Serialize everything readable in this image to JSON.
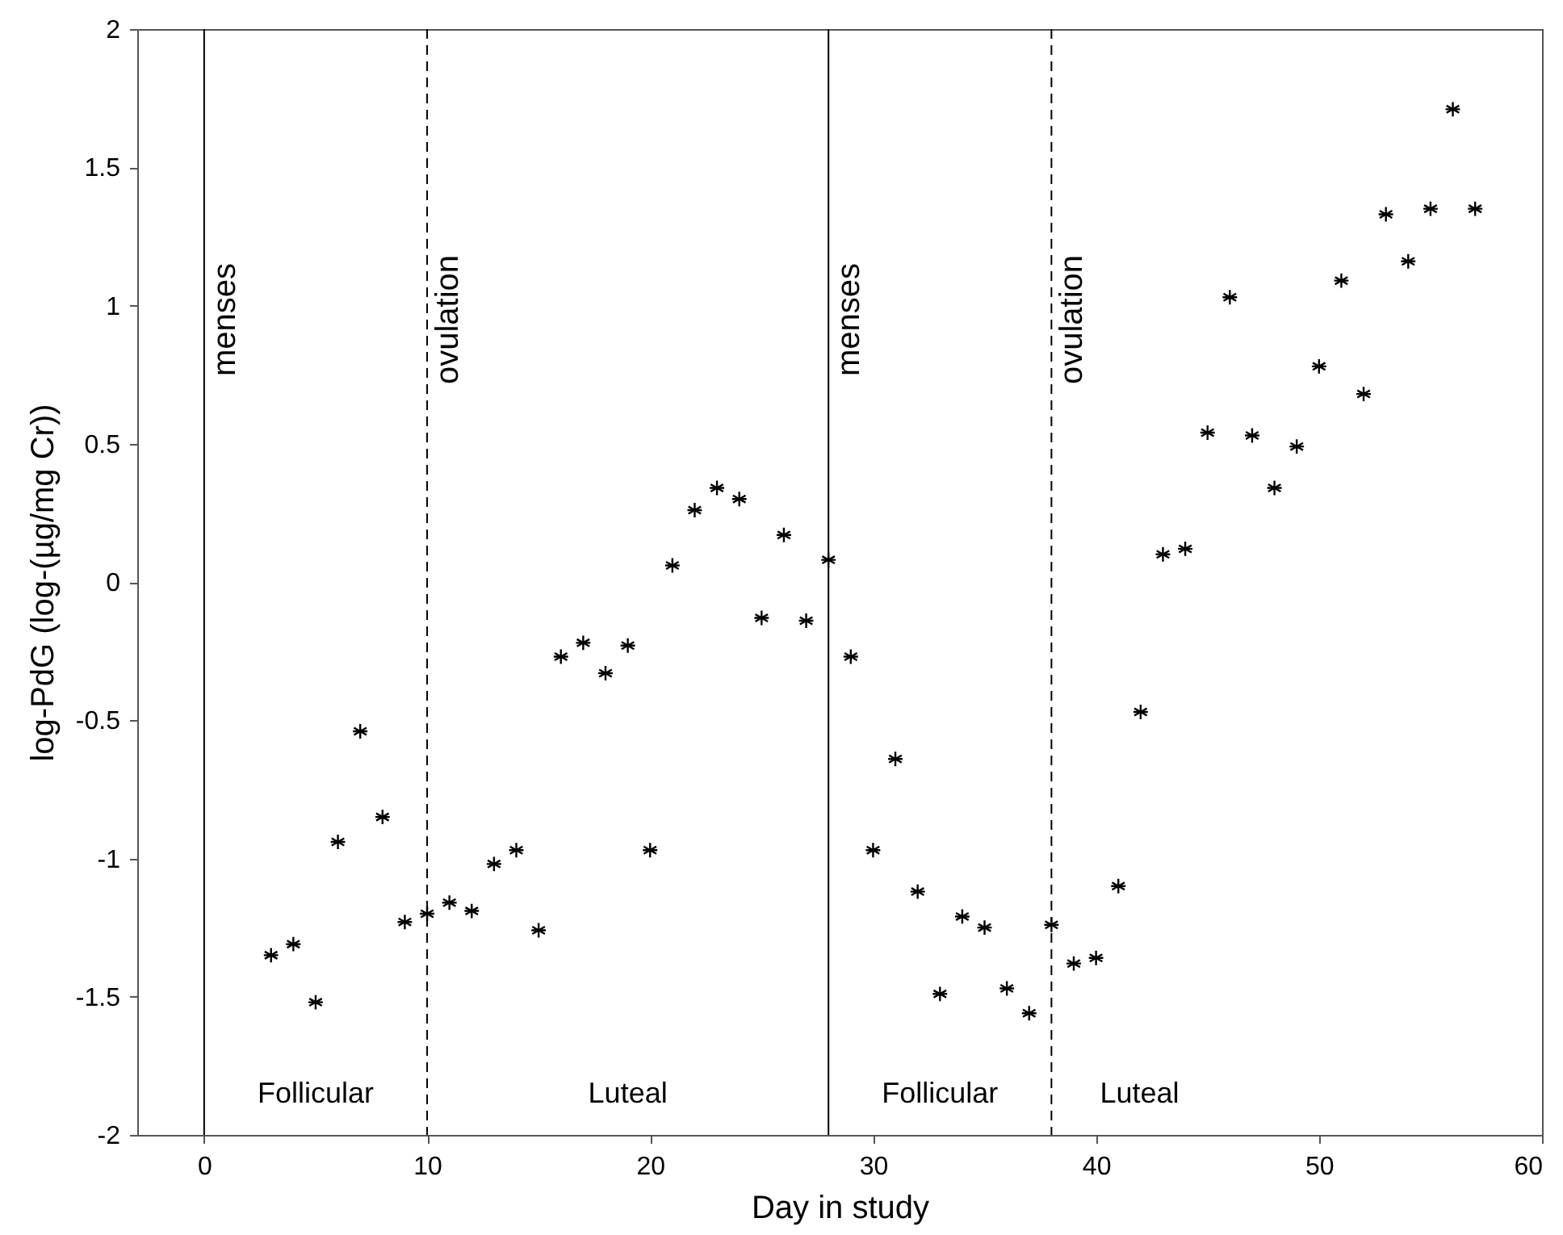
{
  "chart_data": {
    "type": "scatter",
    "xlabel": "Day in study",
    "ylabel": "log-PdG (log-(µg/mg Cr))",
    "x": [
      3,
      4,
      5,
      6,
      7,
      8,
      9,
      10,
      11,
      12,
      13,
      14,
      15,
      16,
      17,
      18,
      19,
      20,
      21,
      22,
      23,
      24,
      25,
      26,
      27,
      28,
      29,
      30,
      31,
      32,
      33,
      34,
      35,
      36,
      37,
      38,
      39,
      40,
      41,
      42,
      43,
      44,
      45,
      46,
      47,
      48,
      49,
      50,
      51,
      52,
      53,
      54,
      55,
      56,
      57
    ],
    "series": [
      {
        "color": "#000000",
        "values": [
          -1.35,
          -1.31,
          -1.52,
          -0.94,
          -0.54,
          -0.85,
          -1.23,
          -1.2,
          -1.16,
          -1.19,
          -1.02,
          -0.97,
          -1.26,
          -0.27,
          -0.22,
          -0.33,
          -0.23,
          -0.97,
          0.06,
          0.26,
          0.34,
          0.3,
          -0.13,
          0.17,
          -0.14,
          0.08,
          -0.27,
          -0.97,
          -0.64,
          -1.12,
          -1.49,
          -1.21,
          -1.25,
          -1.47,
          -1.56,
          -1.24,
          -1.38,
          -1.36,
          -1.1,
          -0.47,
          0.1,
          0.12,
          0.54,
          1.03,
          0.53,
          0.34,
          0.49,
          0.78,
          1.09,
          0.68,
          1.33,
          1.16,
          1.35,
          1.71,
          1.35
        ]
      }
    ],
    "marker": "cross",
    "xlim": [
      -3,
      60
    ],
    "xticks": [
      0,
      10,
      20,
      30,
      40,
      50,
      60
    ],
    "ylim": [
      -2,
      2
    ],
    "yticks": [
      -2,
      -1.5,
      -1,
      -0.5,
      0,
      0.5,
      1,
      1.5,
      2
    ],
    "grid": false,
    "ref_lines": [
      {
        "axis": "x",
        "value": 0,
        "label": "menses",
        "line_style": "solid",
        "color": "#000000"
      },
      {
        "axis": "x",
        "value": 10,
        "label": "ovulation",
        "line_style": "dashed",
        "color": "#000000"
      },
      {
        "axis": "x",
        "value": 28,
        "label": "menses",
        "line_style": "solid",
        "color": "#000000"
      },
      {
        "axis": "x",
        "value": 38,
        "label": "ovulation",
        "line_style": "dashed",
        "color": "#000000"
      }
    ],
    "annotations": [
      "Follicular",
      "Luteal",
      "Follicular",
      "Luteal"
    ]
  }
}
